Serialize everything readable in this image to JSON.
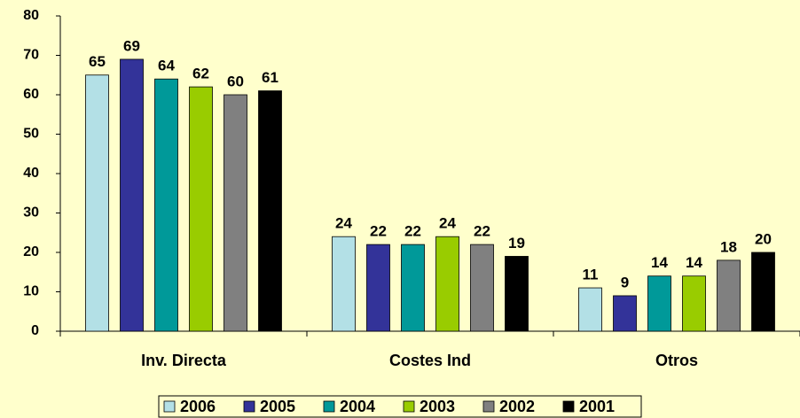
{
  "chart_data": {
    "type": "bar",
    "categories": [
      "Inv. Directa",
      "Costes Ind",
      "Otros"
    ],
    "series": [
      {
        "name": "2006",
        "color": "#B3E0E6",
        "values": [
          65,
          24,
          11
        ]
      },
      {
        "name": "2005",
        "color": "#333399",
        "values": [
          69,
          22,
          9
        ]
      },
      {
        "name": "2004",
        "color": "#009999",
        "values": [
          64,
          22,
          14
        ]
      },
      {
        "name": "2003",
        "color": "#99CC00",
        "values": [
          62,
          24,
          14
        ]
      },
      {
        "name": "2002",
        "color": "#808080",
        "values": [
          60,
          22,
          18
        ]
      },
      {
        "name": "2001",
        "color": "#000000",
        "values": [
          61,
          19,
          20
        ]
      }
    ],
    "ylim": [
      0,
      80
    ],
    "yticks": [
      0,
      10,
      20,
      30,
      40,
      50,
      60,
      70,
      80
    ],
    "grid": false,
    "legend": "bottom"
  }
}
